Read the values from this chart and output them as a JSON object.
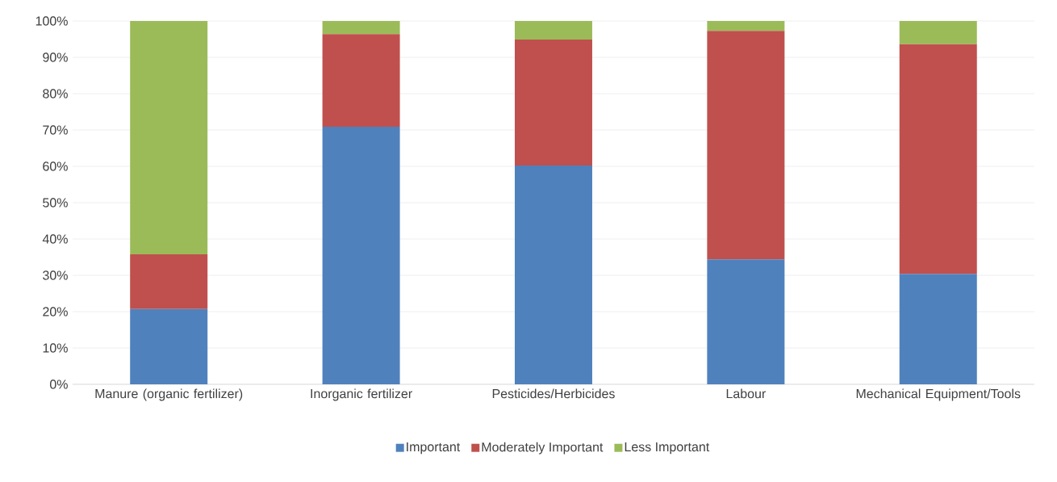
{
  "chart_data": {
    "type": "bar",
    "stacked": true,
    "categories": [
      "Manure (organic fertilizer)",
      "Inorganic fertilizer",
      "Pesticides/Herbicides",
      "Labour",
      "Mechanical Equipment/Tools"
    ],
    "series": [
      {
        "name": "Important",
        "color": "#4f81bd",
        "values": [
          20.7,
          70.9,
          60.2,
          34.4,
          30.4
        ]
      },
      {
        "name": "Moderately Important",
        "color": "#c0504d",
        "values": [
          15.1,
          25.5,
          34.7,
          62.9,
          63.2
        ]
      },
      {
        "name": "Less Important",
        "color": "#9bbb59",
        "values": [
          64.2,
          3.6,
          5.1,
          2.7,
          6.4
        ]
      }
    ],
    "ylim": [
      0,
      100
    ],
    "yticks": [
      {
        "value": 0,
        "label": "0%"
      },
      {
        "value": 10,
        "label": "10%"
      },
      {
        "value": 20,
        "label": "20%"
      },
      {
        "value": 30,
        "label": "30%"
      },
      {
        "value": 40,
        "label": "40%"
      },
      {
        "value": 50,
        "label": "50%"
      },
      {
        "value": 60,
        "label": "60%"
      },
      {
        "value": 70,
        "label": "70%"
      },
      {
        "value": 80,
        "label": "80%"
      },
      {
        "value": 90,
        "label": "90%"
      },
      {
        "value": 100,
        "label": "100%"
      }
    ],
    "grid": "y",
    "legend": "bottom"
  }
}
